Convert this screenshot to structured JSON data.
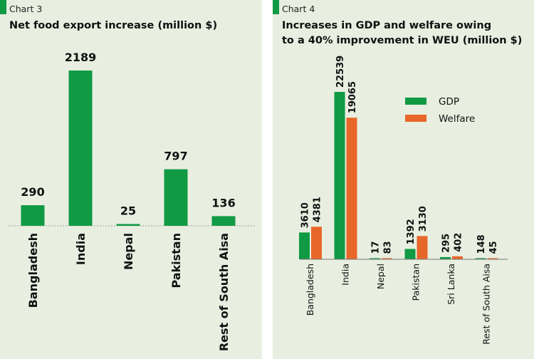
{
  "colors": {
    "panel_bg": "#e8efe0",
    "green": "#109a44",
    "orange": "#e8662a"
  },
  "chart_data": [
    {
      "type": "bar",
      "label": "Chart 3",
      "title": "Net food export increase (million $)",
      "categories": [
        "Bangladesh",
        "India",
        "Nepal",
        "Pakistan",
        "Rest of South Aisa"
      ],
      "values": [
        290,
        2189,
        25,
        797,
        136
      ],
      "ylim": [
        0,
        2189
      ],
      "grid": false
    },
    {
      "type": "bar",
      "label": "Chart 4",
      "title": "Increases in GDP and welfare owing to a 40% improvement in WEU (million $)",
      "title_lines": [
        "Increases in GDP and welfare owing",
        "to a 40% improvement in WEU (million $)"
      ],
      "categories": [
        "Bangladesh",
        "India",
        "Nepal",
        "Pakistan",
        "Sri Lanka",
        "Rest of South Aisa"
      ],
      "series": [
        {
          "name": "GDP",
          "color": "#109a44",
          "values": [
            3610,
            22539,
            17,
            1392,
            295,
            148
          ]
        },
        {
          "name": "Welfare",
          "color": "#e8662a",
          "values": [
            4381,
            19065,
            83,
            3130,
            402,
            45
          ]
        }
      ],
      "ylim": [
        0,
        22539
      ],
      "legend": "top-right",
      "grid": false
    }
  ]
}
